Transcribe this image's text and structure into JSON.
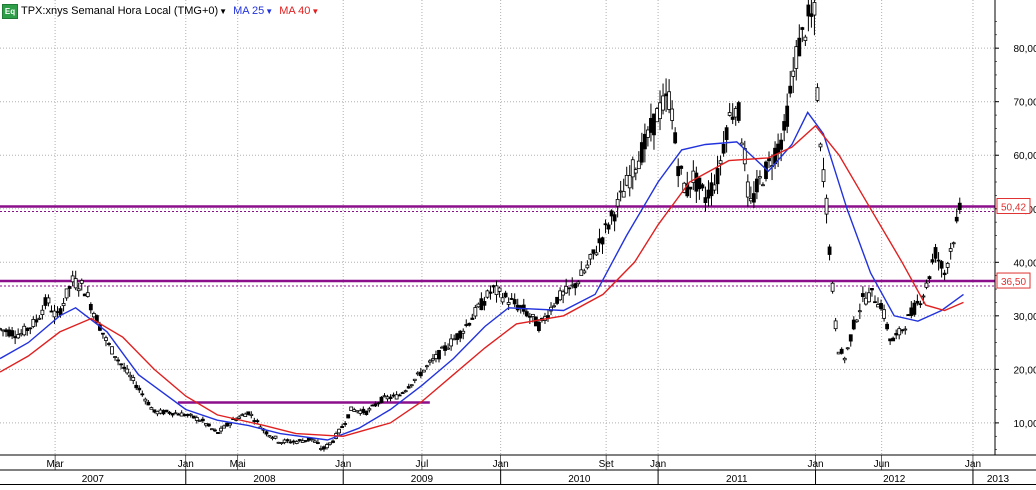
{
  "header": {
    "badge": "Eq",
    "symbol_label": "TPX:xnys Semanal Hora Local (TMG+0)",
    "ma25_label": "MA 25",
    "ma40_label": "MA 40",
    "ma25_color": "#2233dd",
    "ma40_color": "#e02020",
    "caret_icon": "chevron-down-icon"
  },
  "chart_data": {
    "type": "candlestick",
    "title": "TPX:xnys Semanal Hora Local (TMG+0)",
    "ylim": [
      4,
      89
    ],
    "y_ticks": [
      "10,00",
      "20,00",
      "30,00",
      "40,00",
      "50,00",
      "60,00",
      "70,00",
      "80,00"
    ],
    "y_tick_values": [
      10,
      20,
      30,
      40,
      50,
      60,
      70,
      80
    ],
    "x_range": [
      2006.82,
      2013.14
    ],
    "month_labels": [
      {
        "label": "Mar",
        "t": 2007.17
      },
      {
        "label": "Jan",
        "t": 2008.0
      },
      {
        "label": "Mai",
        "t": 2008.33
      },
      {
        "label": "Jan",
        "t": 2009.0
      },
      {
        "label": "Jul",
        "t": 2009.5
      },
      {
        "label": "Jan",
        "t": 2010.0
      },
      {
        "label": "Set",
        "t": 2010.67
      },
      {
        "label": "Jan",
        "t": 2011.0
      },
      {
        "label": "Jan",
        "t": 2012.0
      },
      {
        "label": "Jun",
        "t": 2012.42
      },
      {
        "label": "Jan",
        "t": 2013.0
      }
    ],
    "year_labels": [
      {
        "label": "2007",
        "start": 2006.82,
        "end": 2008.0
      },
      {
        "label": "2008",
        "start": 2008.0,
        "end": 2009.0
      },
      {
        "label": "2009",
        "start": 2009.0,
        "end": 2010.0
      },
      {
        "label": "2010",
        "start": 2010.0,
        "end": 2011.0
      },
      {
        "label": "2011",
        "start": 2011.0,
        "end": 2012.0
      },
      {
        "label": "2012",
        "start": 2012.0,
        "end": 2013.0
      },
      {
        "label": "2013",
        "start": 2013.0,
        "end": 2013.14
      }
    ],
    "price_anchors": [
      [
        2006.82,
        27.5
      ],
      [
        2006.95,
        26.5
      ],
      [
        2007.05,
        29.0
      ],
      [
        2007.12,
        33.0
      ],
      [
        2007.18,
        29.5
      ],
      [
        2007.28,
        36.5
      ],
      [
        2007.35,
        35.5
      ],
      [
        2007.42,
        30.5
      ],
      [
        2007.5,
        25.0
      ],
      [
        2007.6,
        20.5
      ],
      [
        2007.7,
        16.5
      ],
      [
        2007.8,
        12.0
      ],
      [
        2007.9,
        12.0
      ],
      [
        2008.0,
        11.5
      ],
      [
        2008.1,
        10.5
      ],
      [
        2008.2,
        8.0
      ],
      [
        2008.3,
        10.5
      ],
      [
        2008.4,
        12.0
      ],
      [
        2008.5,
        8.5
      ],
      [
        2008.6,
        6.5
      ],
      [
        2008.7,
        6.5
      ],
      [
        2008.8,
        7.0
      ],
      [
        2008.87,
        5.0
      ],
      [
        2008.93,
        6.5
      ],
      [
        2009.0,
        9.5
      ],
      [
        2009.05,
        12.5
      ],
      [
        2009.15,
        12.0
      ],
      [
        2009.25,
        14.5
      ],
      [
        2009.35,
        15.0
      ],
      [
        2009.45,
        18.0
      ],
      [
        2009.55,
        21.0
      ],
      [
        2009.65,
        24.0
      ],
      [
        2009.75,
        27.0
      ],
      [
        2009.85,
        31.0
      ],
      [
        2009.95,
        35.0
      ],
      [
        2010.05,
        33.0
      ],
      [
        2010.15,
        31.0
      ],
      [
        2010.25,
        28.0
      ],
      [
        2010.35,
        33.0
      ],
      [
        2010.45,
        35.0
      ],
      [
        2010.55,
        39.0
      ],
      [
        2010.65,
        45.0
      ],
      [
        2010.75,
        51.0
      ],
      [
        2010.85,
        58.0
      ],
      [
        2010.92,
        62.0
      ],
      [
        2011.0,
        68.0
      ],
      [
        2011.08,
        71.0
      ],
      [
        2011.12,
        59.0
      ],
      [
        2011.18,
        53.0
      ],
      [
        2011.22,
        56.0
      ],
      [
        2011.3,
        52.0
      ],
      [
        2011.38,
        56.0
      ],
      [
        2011.44,
        66.0
      ],
      [
        2011.5,
        70.0
      ],
      [
        2011.55,
        60.0
      ],
      [
        2011.58,
        50.0
      ],
      [
        2011.63,
        54.0
      ],
      [
        2011.7,
        58.0
      ],
      [
        2011.8,
        64.0
      ],
      [
        2011.88,
        79.0
      ],
      [
        2011.95,
        85.0
      ],
      [
        2012.0,
        86.0
      ],
      [
        2012.02,
        63.0
      ],
      [
        2012.06,
        55.0
      ],
      [
        2012.1,
        38.0
      ],
      [
        2012.14,
        24.0
      ],
      [
        2012.19,
        22.0
      ],
      [
        2012.24,
        28.0
      ],
      [
        2012.3,
        33.0
      ],
      [
        2012.36,
        34.0
      ],
      [
        2012.42,
        32.0
      ],
      [
        2012.48,
        25.0
      ],
      [
        2012.54,
        27.0
      ],
      [
        2012.62,
        31.0
      ],
      [
        2012.7,
        35.0
      ],
      [
        2012.76,
        42.0
      ],
      [
        2012.82,
        38.0
      ],
      [
        2012.88,
        45.0
      ],
      [
        2012.93,
        51.0
      ]
    ],
    "series": [
      {
        "name": "MA 25",
        "color": "#2233dd",
        "values": [
          [
            2006.82,
            22.0
          ],
          [
            2007.0,
            25.0
          ],
          [
            2007.2,
            30.0
          ],
          [
            2007.3,
            31.5
          ],
          [
            2007.5,
            27.0
          ],
          [
            2007.7,
            19.0
          ],
          [
            2008.0,
            12.5
          ],
          [
            2008.2,
            10.5
          ],
          [
            2008.4,
            9.5
          ],
          [
            2008.6,
            8.0
          ],
          [
            2008.9,
            6.8
          ],
          [
            2009.1,
            9.0
          ],
          [
            2009.3,
            12.5
          ],
          [
            2009.5,
            17.0
          ],
          [
            2009.7,
            22.0
          ],
          [
            2009.9,
            28.0
          ],
          [
            2010.05,
            31.5
          ],
          [
            2010.4,
            31.0
          ],
          [
            2010.6,
            34.0
          ],
          [
            2010.8,
            45.0
          ],
          [
            2011.0,
            55.0
          ],
          [
            2011.15,
            61.0
          ],
          [
            2011.3,
            62.0
          ],
          [
            2011.5,
            62.5
          ],
          [
            2011.7,
            57.0
          ],
          [
            2011.85,
            62.0
          ],
          [
            2011.95,
            68.0
          ],
          [
            2012.05,
            64.0
          ],
          [
            2012.2,
            50.0
          ],
          [
            2012.35,
            38.0
          ],
          [
            2012.5,
            30.0
          ],
          [
            2012.65,
            29.0
          ],
          [
            2012.8,
            31.0
          ],
          [
            2012.94,
            34.0
          ]
        ]
      },
      {
        "name": "MA 40",
        "color": "#e02020",
        "values": [
          [
            2006.82,
            19.5
          ],
          [
            2007.0,
            22.5
          ],
          [
            2007.2,
            27.0
          ],
          [
            2007.4,
            29.5
          ],
          [
            2007.6,
            26.0
          ],
          [
            2007.8,
            20.0
          ],
          [
            2008.0,
            15.0
          ],
          [
            2008.2,
            11.5
          ],
          [
            2008.5,
            9.5
          ],
          [
            2008.7,
            8.0
          ],
          [
            2009.0,
            7.5
          ],
          [
            2009.3,
            10.0
          ],
          [
            2009.5,
            14.0
          ],
          [
            2009.7,
            19.0
          ],
          [
            2009.9,
            24.0
          ],
          [
            2010.1,
            28.5
          ],
          [
            2010.4,
            30.0
          ],
          [
            2010.65,
            34.0
          ],
          [
            2010.85,
            40.0
          ],
          [
            2011.0,
            47.0
          ],
          [
            2011.2,
            55.0
          ],
          [
            2011.45,
            59.0
          ],
          [
            2011.7,
            59.5
          ],
          [
            2011.85,
            61.5
          ],
          [
            2012.0,
            65.5
          ],
          [
            2012.15,
            60.0
          ],
          [
            2012.35,
            50.0
          ],
          [
            2012.55,
            40.0
          ],
          [
            2012.7,
            32.0
          ],
          [
            2012.82,
            31.0
          ],
          [
            2012.94,
            32.5
          ]
        ]
      }
    ],
    "horizontal_lines": [
      {
        "value": 50.42,
        "label": "50,42",
        "t_start": 2006.82,
        "t_end": 2013.14
      },
      {
        "value": 36.5,
        "label": "36,50",
        "t_start": 2006.82,
        "t_end": 2013.14
      },
      {
        "value": 13.8,
        "t_start": 2007.95,
        "t_end": 2009.55
      }
    ],
    "level_line_color": "#8b0f8b",
    "grid": true
  }
}
